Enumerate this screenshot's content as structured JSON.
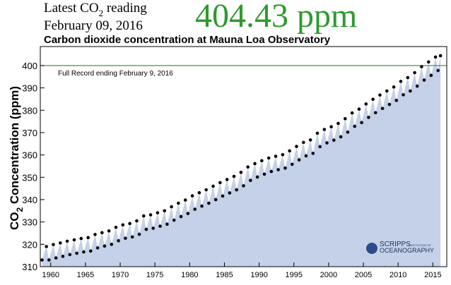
{
  "header": {
    "label_parts": [
      "Latest CO",
      "2",
      " reading"
    ],
    "date": "February 09, 2016",
    "latest_reading": "404.43 ppm"
  },
  "chart_data": {
    "type": "scatter",
    "title": "Carbon dioxide concentration at Mauna Loa Observatory",
    "ylabel_parts": [
      "CO",
      "2",
      " Concentration (ppm)"
    ],
    "annotation": "Full Record ending February 9, 2016",
    "reference_line": {
      "value": 400,
      "color": "#2e8b2e"
    },
    "logo": [
      "SCRIPPS",
      "INSTITUTION OF",
      "OCEANOGRAPHY"
    ],
    "color": "#000000",
    "area_color": "#c5d1e8",
    "xlim": [
      1958.5,
      2017
    ],
    "ylim": [
      310,
      408.5
    ],
    "xticks": [
      1960,
      1965,
      1970,
      1975,
      1980,
      1985,
      1990,
      1995,
      2000,
      2005,
      2010,
      2015
    ],
    "yticks": [
      310,
      320,
      330,
      340,
      350,
      360,
      370,
      380,
      390,
      400
    ],
    "x": [
      1958.75,
      1959.38,
      1959.75,
      1960.38,
      1960.75,
      1961.38,
      1961.75,
      1962.38,
      1962.75,
      1963.38,
      1963.75,
      1964.38,
      1964.75,
      1965.38,
      1965.75,
      1966.38,
      1966.75,
      1967.38,
      1967.75,
      1968.38,
      1968.75,
      1969.38,
      1969.75,
      1970.38,
      1970.75,
      1971.38,
      1971.75,
      1972.38,
      1972.75,
      1973.38,
      1973.75,
      1974.38,
      1974.75,
      1975.38,
      1975.75,
      1976.38,
      1976.75,
      1977.38,
      1977.75,
      1978.38,
      1978.75,
      1979.38,
      1979.75,
      1980.38,
      1980.75,
      1981.38,
      1981.75,
      1982.38,
      1982.75,
      1983.38,
      1983.75,
      1984.38,
      1984.75,
      1985.38,
      1985.75,
      1986.38,
      1986.75,
      1987.38,
      1987.75,
      1988.38,
      1988.75,
      1989.38,
      1989.75,
      1990.38,
      1990.75,
      1991.38,
      1991.75,
      1992.38,
      1992.75,
      1993.38,
      1993.75,
      1994.38,
      1994.75,
      1995.38,
      1995.75,
      1996.38,
      1996.75,
      1997.38,
      1997.75,
      1998.38,
      1998.75,
      1999.38,
      1999.75,
      2000.38,
      2000.75,
      2001.38,
      2001.75,
      2002.38,
      2002.75,
      2003.38,
      2003.75,
      2004.38,
      2004.75,
      2005.38,
      2005.75,
      2006.38,
      2006.75,
      2007.38,
      2007.75,
      2008.38,
      2008.75,
      2009.38,
      2009.75,
      2010.38,
      2010.75,
      2011.38,
      2011.75,
      2012.38,
      2012.75,
      2013.38,
      2013.75,
      2014.38,
      2014.75,
      2015.38,
      2015.75,
      2016.1
    ],
    "values": [
      313.0,
      319.0,
      313.0,
      319.9,
      313.9,
      320.6,
      314.6,
      321.4,
      315.4,
      322.0,
      316.0,
      322.6,
      316.6,
      323.0,
      317.0,
      324.4,
      318.4,
      325.2,
      319.2,
      326.0,
      320.0,
      327.6,
      321.6,
      328.7,
      322.7,
      329.3,
      323.3,
      330.5,
      324.5,
      332.7,
      326.7,
      333.2,
      327.2,
      334.1,
      328.1,
      335.0,
      329.0,
      336.8,
      330.8,
      338.4,
      332.4,
      339.8,
      333.8,
      341.7,
      335.7,
      343.1,
      337.1,
      344.4,
      338.4,
      346.0,
      340.0,
      347.6,
      341.6,
      349.0,
      343.0,
      350.4,
      344.4,
      352.2,
      346.2,
      354.6,
      348.6,
      356.1,
      350.1,
      357.4,
      351.4,
      358.6,
      352.6,
      359.4,
      353.4,
      360.1,
      354.1,
      361.8,
      355.8,
      363.8,
      357.8,
      365.6,
      359.6,
      366.7,
      360.7,
      369.7,
      363.7,
      371.4,
      365.4,
      372.6,
      366.6,
      374.1,
      368.1,
      376.2,
      370.2,
      378.8,
      372.8,
      380.5,
      374.5,
      382.8,
      376.8,
      384.9,
      378.9,
      386.8,
      380.8,
      388.6,
      382.6,
      390.4,
      384.4,
      392.9,
      386.9,
      394.6,
      388.6,
      396.8,
      390.8,
      399.5,
      393.5,
      401.6,
      395.6,
      403.8,
      397.8,
      404.4
    ]
  }
}
